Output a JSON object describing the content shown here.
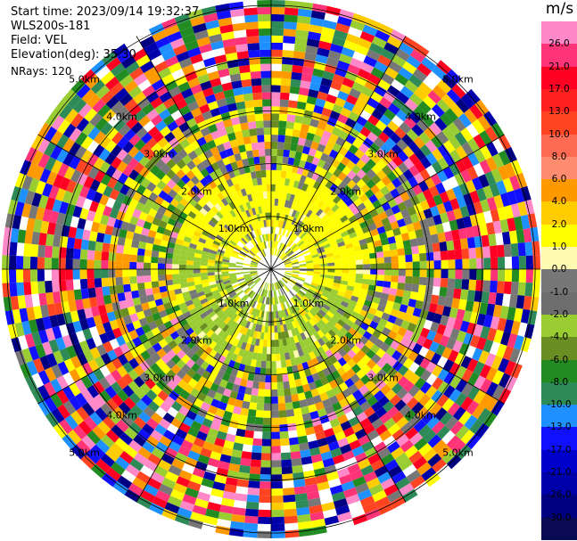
{
  "header": {
    "start_time": "Start time: 2023/09/14 19:32:37",
    "instrument": "WLS200s-181",
    "field": "Field: VEL",
    "elevation": "Elevation(deg): 35.30",
    "nrays": "NRays: 120"
  },
  "colorbar": {
    "unit": "m/s",
    "ticks": [
      "26.0",
      "21.0",
      "17.0",
      "13.0",
      "10.0",
      "8.0",
      "6.0",
      "4.0",
      "2.0",
      "1.0",
      "0.0",
      "-1.0",
      "-2.0",
      "-4.0",
      "-6.0",
      "-8.0",
      "-10.0",
      "-13.0",
      "-17.0",
      "-21.0",
      "-26.0",
      "-30.0"
    ],
    "colors": [
      "#ff88c8",
      "#ff3377",
      "#ff0022",
      "#ff2020",
      "#ff4422",
      "#ff6a55",
      "#ff8c6e",
      "#ff9900",
      "#ffcc00",
      "#ffff00",
      "#fffbb0",
      "#777777",
      "#6e6e6e",
      "#9acd32",
      "#6b8e23",
      "#228b22",
      "#2e8b57",
      "#1e90ff",
      "#1010ff",
      "#0000cc",
      "#0000aa",
      "#000080",
      "#0a0a55"
    ]
  },
  "chart_data": {
    "type": "polar-ppi",
    "field": "VEL",
    "unit": "m/s",
    "nrays": 120,
    "range_rings_km": [
      1.0,
      2.0,
      3.0,
      4.0,
      5.0
    ],
    "ring_labels": [
      "1.0km",
      "2.0km",
      "3.0km",
      "4.0km",
      "5.0km"
    ],
    "color_scale_min": -30.0,
    "color_scale_max": 26.0
  }
}
